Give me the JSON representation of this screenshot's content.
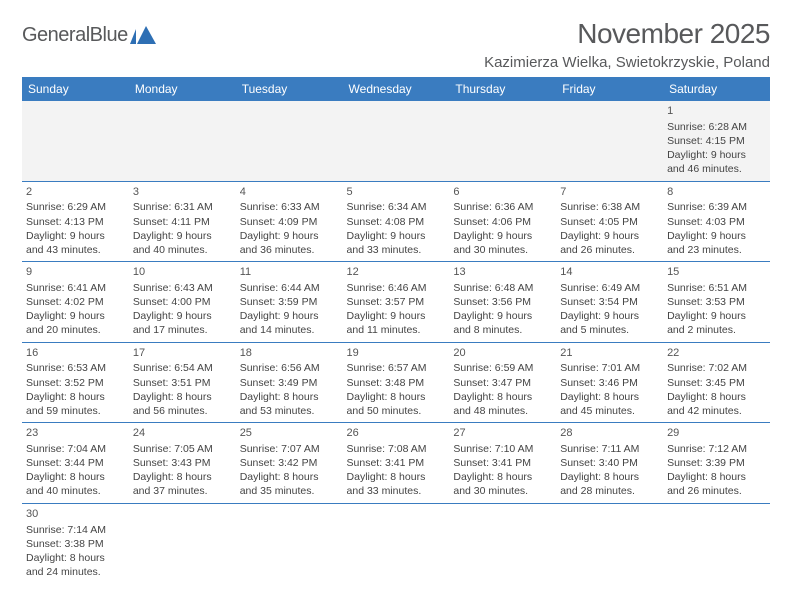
{
  "logo": {
    "name": "General",
    "accent": "Blue",
    "text_color": "#58595b",
    "accent_color": "#2e6fb4"
  },
  "title": "November 2025",
  "location": "Kazimierza Wielka, Swietokrzyskie, Poland",
  "header_bg": "#3a7cc0",
  "header_fg": "#ffffff",
  "border_color": "#3a7cc0",
  "empty_bg": "#f3f3f3",
  "page_bg": "#ffffff",
  "days": [
    "Sunday",
    "Monday",
    "Tuesday",
    "Wednesday",
    "Thursday",
    "Friday",
    "Saturday"
  ],
  "weeks": [
    [
      null,
      null,
      null,
      null,
      null,
      null,
      {
        "n": "1",
        "sr": "6:28 AM",
        "ss": "4:15 PM",
        "dl": "9 hours and 46 minutes."
      }
    ],
    [
      {
        "n": "2",
        "sr": "6:29 AM",
        "ss": "4:13 PM",
        "dl": "9 hours and 43 minutes."
      },
      {
        "n": "3",
        "sr": "6:31 AM",
        "ss": "4:11 PM",
        "dl": "9 hours and 40 minutes."
      },
      {
        "n": "4",
        "sr": "6:33 AM",
        "ss": "4:09 PM",
        "dl": "9 hours and 36 minutes."
      },
      {
        "n": "5",
        "sr": "6:34 AM",
        "ss": "4:08 PM",
        "dl": "9 hours and 33 minutes."
      },
      {
        "n": "6",
        "sr": "6:36 AM",
        "ss": "4:06 PM",
        "dl": "9 hours and 30 minutes."
      },
      {
        "n": "7",
        "sr": "6:38 AM",
        "ss": "4:05 PM",
        "dl": "9 hours and 26 minutes."
      },
      {
        "n": "8",
        "sr": "6:39 AM",
        "ss": "4:03 PM",
        "dl": "9 hours and 23 minutes."
      }
    ],
    [
      {
        "n": "9",
        "sr": "6:41 AM",
        "ss": "4:02 PM",
        "dl": "9 hours and 20 minutes."
      },
      {
        "n": "10",
        "sr": "6:43 AM",
        "ss": "4:00 PM",
        "dl": "9 hours and 17 minutes."
      },
      {
        "n": "11",
        "sr": "6:44 AM",
        "ss": "3:59 PM",
        "dl": "9 hours and 14 minutes."
      },
      {
        "n": "12",
        "sr": "6:46 AM",
        "ss": "3:57 PM",
        "dl": "9 hours and 11 minutes."
      },
      {
        "n": "13",
        "sr": "6:48 AM",
        "ss": "3:56 PM",
        "dl": "9 hours and 8 minutes."
      },
      {
        "n": "14",
        "sr": "6:49 AM",
        "ss": "3:54 PM",
        "dl": "9 hours and 5 minutes."
      },
      {
        "n": "15",
        "sr": "6:51 AM",
        "ss": "3:53 PM",
        "dl": "9 hours and 2 minutes."
      }
    ],
    [
      {
        "n": "16",
        "sr": "6:53 AM",
        "ss": "3:52 PM",
        "dl": "8 hours and 59 minutes."
      },
      {
        "n": "17",
        "sr": "6:54 AM",
        "ss": "3:51 PM",
        "dl": "8 hours and 56 minutes."
      },
      {
        "n": "18",
        "sr": "6:56 AM",
        "ss": "3:49 PM",
        "dl": "8 hours and 53 minutes."
      },
      {
        "n": "19",
        "sr": "6:57 AM",
        "ss": "3:48 PM",
        "dl": "8 hours and 50 minutes."
      },
      {
        "n": "20",
        "sr": "6:59 AM",
        "ss": "3:47 PM",
        "dl": "8 hours and 48 minutes."
      },
      {
        "n": "21",
        "sr": "7:01 AM",
        "ss": "3:46 PM",
        "dl": "8 hours and 45 minutes."
      },
      {
        "n": "22",
        "sr": "7:02 AM",
        "ss": "3:45 PM",
        "dl": "8 hours and 42 minutes."
      }
    ],
    [
      {
        "n": "23",
        "sr": "7:04 AM",
        "ss": "3:44 PM",
        "dl": "8 hours and 40 minutes."
      },
      {
        "n": "24",
        "sr": "7:05 AM",
        "ss": "3:43 PM",
        "dl": "8 hours and 37 minutes."
      },
      {
        "n": "25",
        "sr": "7:07 AM",
        "ss": "3:42 PM",
        "dl": "8 hours and 35 minutes."
      },
      {
        "n": "26",
        "sr": "7:08 AM",
        "ss": "3:41 PM",
        "dl": "8 hours and 33 minutes."
      },
      {
        "n": "27",
        "sr": "7:10 AM",
        "ss": "3:41 PM",
        "dl": "8 hours and 30 minutes."
      },
      {
        "n": "28",
        "sr": "7:11 AM",
        "ss": "3:40 PM",
        "dl": "8 hours and 28 minutes."
      },
      {
        "n": "29",
        "sr": "7:12 AM",
        "ss": "3:39 PM",
        "dl": "8 hours and 26 minutes."
      }
    ],
    [
      {
        "n": "30",
        "sr": "7:14 AM",
        "ss": "3:38 PM",
        "dl": "8 hours and 24 minutes."
      },
      null,
      null,
      null,
      null,
      null,
      null
    ]
  ],
  "labels": {
    "sunrise": "Sunrise:",
    "sunset": "Sunset:",
    "daylight": "Daylight:"
  }
}
